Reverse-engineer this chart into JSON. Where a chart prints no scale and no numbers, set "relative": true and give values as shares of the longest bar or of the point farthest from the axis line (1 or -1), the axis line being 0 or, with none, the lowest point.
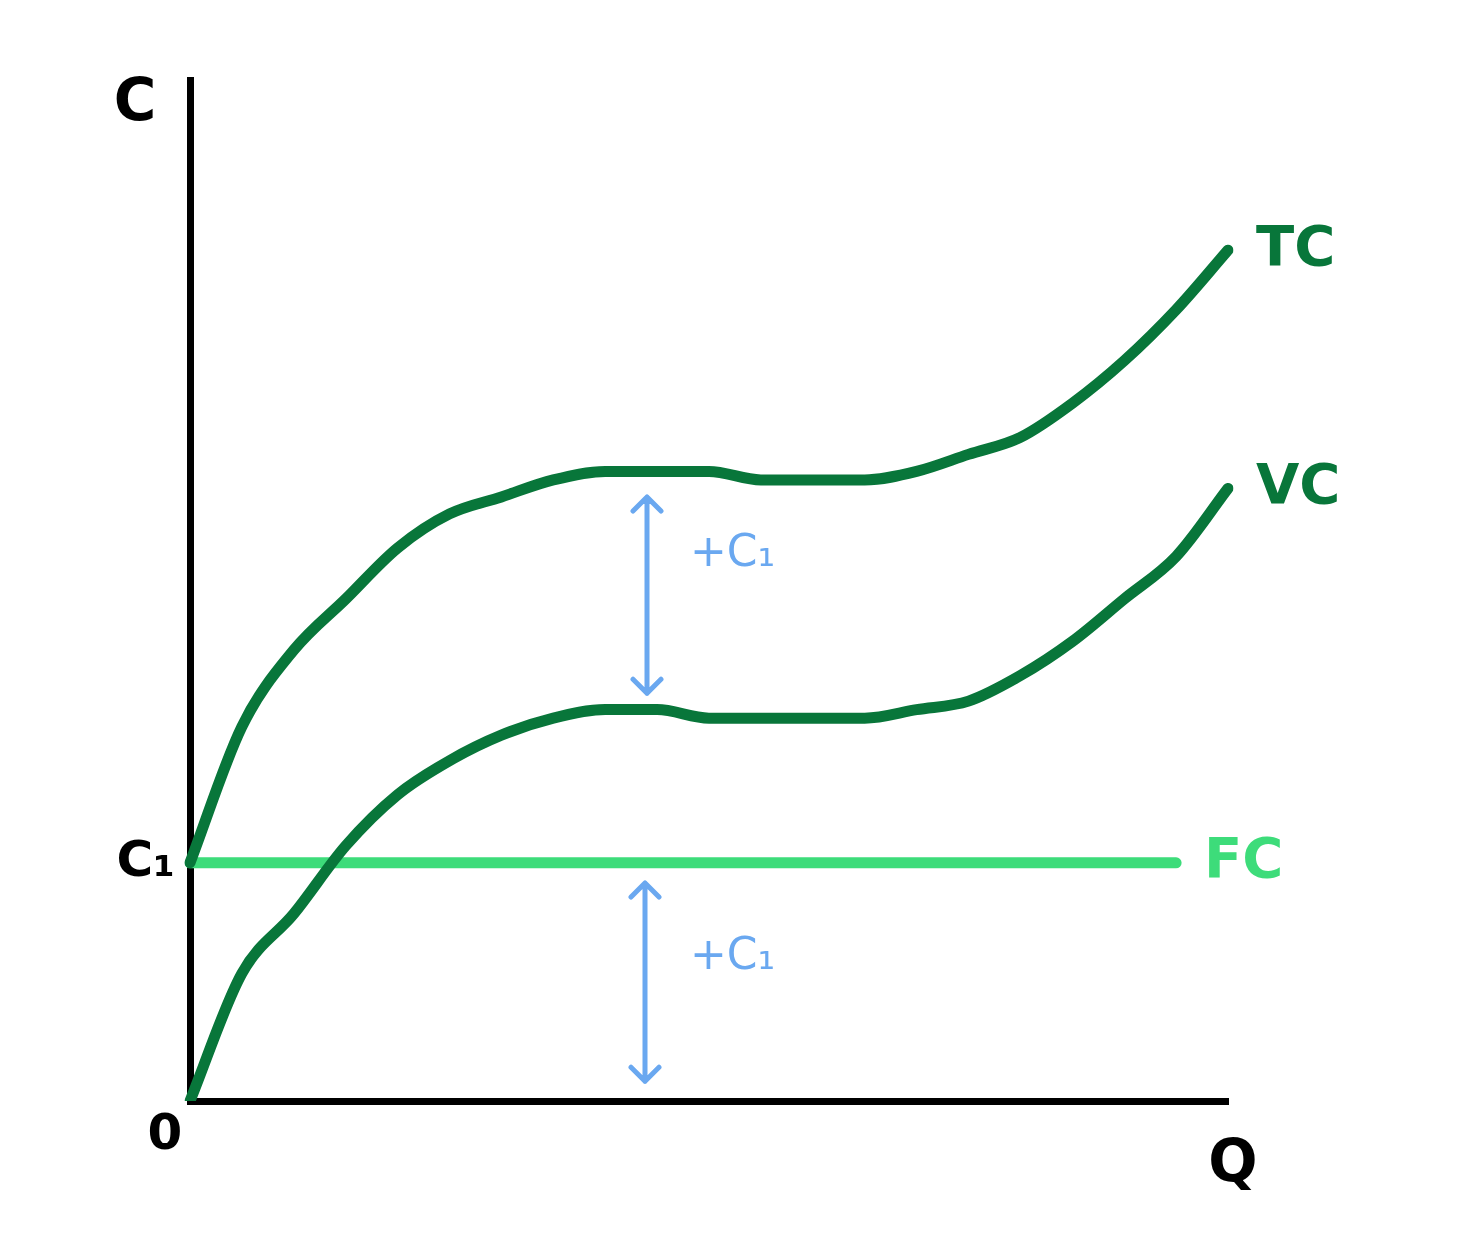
{
  "chart_data": {
    "type": "line",
    "relative": true,
    "xlabel": "Q",
    "ylabel": "C",
    "categories": [
      null,
      null,
      null,
      null,
      null,
      null,
      null,
      null,
      null,
      null,
      null,
      null,
      null,
      null,
      null,
      null,
      null,
      null,
      null,
      null,
      null
    ],
    "series": [
      {
        "name": "TC",
        "color": "#08763a",
        "values": [
          0.28,
          0.44,
          0.53,
          0.59,
          0.65,
          0.69,
          0.71,
          0.73,
          0.74,
          0.74,
          0.74,
          0.73,
          0.73,
          0.73,
          0.74,
          0.76,
          0.78,
          0.82,
          0.87,
          0.93,
          1
        ]
      },
      {
        "name": "VC",
        "color": "#08763a",
        "values": [
          0,
          0.15,
          0.22,
          0.3,
          0.36,
          0.4,
          0.43,
          0.45,
          0.46,
          0.46,
          0.45,
          0.45,
          0.45,
          0.45,
          0.46,
          0.47,
          0.5,
          0.54,
          0.59,
          0.64,
          0.72
        ]
      },
      {
        "name": "FC",
        "color": "#3ddc7a",
        "values": [
          0.28,
          0.28,
          0.28,
          0.28,
          0.28,
          0.28,
          0.28,
          0.28,
          0.28,
          0.28,
          0.28,
          0.28,
          0.28,
          0.28,
          0.28,
          0.28,
          0.28,
          0.28,
          0.28,
          0.28,
          null
        ]
      }
    ],
    "annotations": [
      "0",
      "C₁",
      "+C₁",
      "+C₁"
    ],
    "grid": false,
    "legend": false,
    "marker": "none",
    "line_style": "solid"
  }
}
